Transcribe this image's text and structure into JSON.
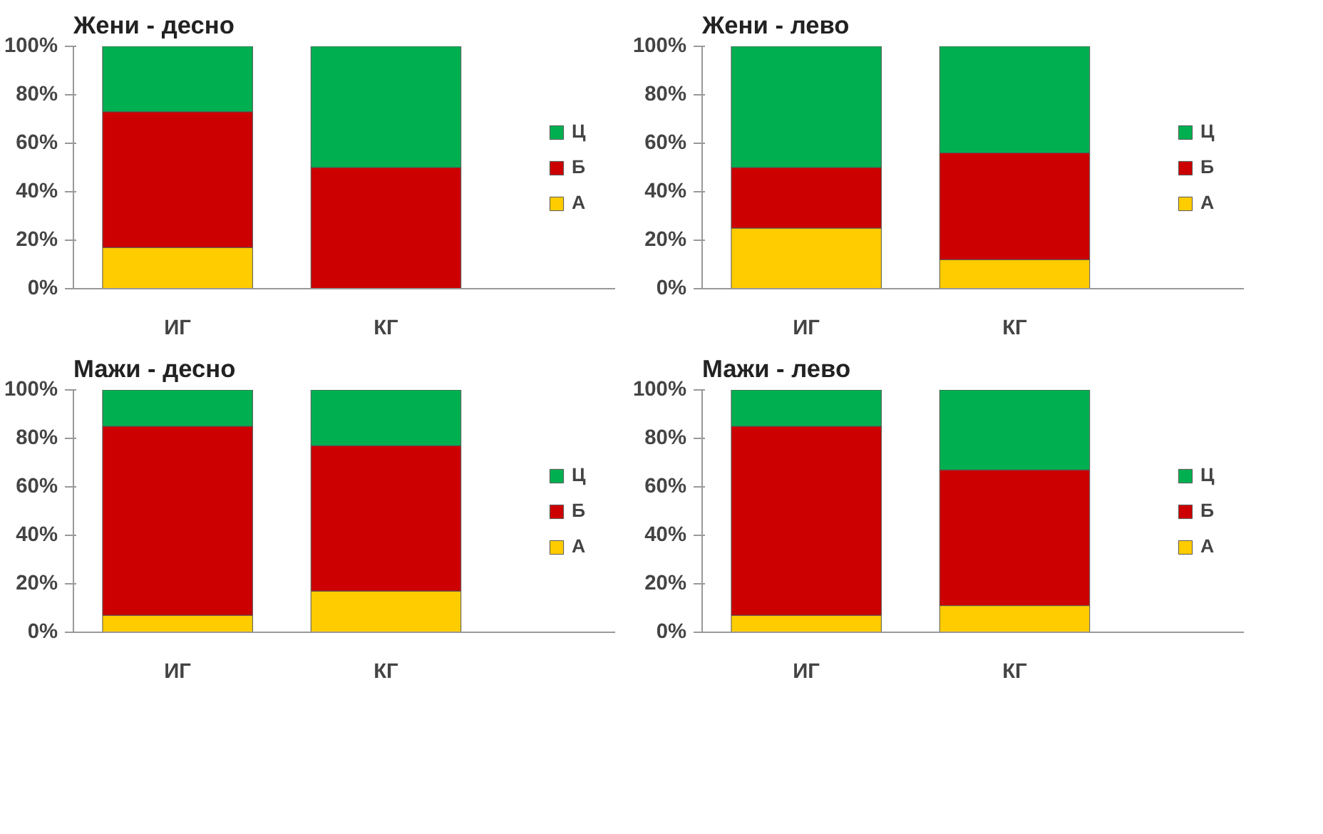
{
  "chart_data": [
    {
      "type": "bar",
      "title": "Жени - десно",
      "categories": [
        "ИГ",
        "КГ"
      ],
      "stacked": true,
      "legend": "right",
      "grid": false,
      "ylim": [
        0,
        1
      ],
      "yticks": [
        {
          "value": 0,
          "label": "0%"
        },
        {
          "value": 0.2,
          "label": "20%"
        },
        {
          "value": 0.4,
          "label": "40%"
        },
        {
          "value": 0.6,
          "label": "60%"
        },
        {
          "value": 0.8,
          "label": "80%"
        },
        {
          "value": 1,
          "label": "100%"
        }
      ],
      "series": [
        {
          "name": "А",
          "color": "#ffcc00",
          "values": [
            0.17,
            0
          ]
        },
        {
          "name": "Б",
          "color": "#cc0000",
          "values": [
            0.56,
            0.5
          ]
        },
        {
          "name": "Ц",
          "color": "#00b050",
          "values": [
            0.27,
            0.5
          ]
        }
      ]
    },
    {
      "type": "bar",
      "title": "Жени - лево",
      "categories": [
        "ИГ",
        "КГ"
      ],
      "stacked": true,
      "legend": "right",
      "grid": false,
      "ylim": [
        0,
        1
      ],
      "yticks": [
        {
          "value": 0,
          "label": "0%"
        },
        {
          "value": 0.2,
          "label": "20%"
        },
        {
          "value": 0.4,
          "label": "40%"
        },
        {
          "value": 0.6,
          "label": "60%"
        },
        {
          "value": 0.8,
          "label": "80%"
        },
        {
          "value": 1,
          "label": "100%"
        }
      ],
      "series": [
        {
          "name": "А",
          "color": "#ffcc00",
          "values": [
            0.25,
            0.12
          ]
        },
        {
          "name": "Б",
          "color": "#cc0000",
          "values": [
            0.25,
            0.44
          ]
        },
        {
          "name": "Ц",
          "color": "#00b050",
          "values": [
            0.5,
            0.44
          ]
        }
      ]
    },
    {
      "type": "bar",
      "title": "Мажи - десно",
      "categories": [
        "ИГ",
        "КГ"
      ],
      "stacked": true,
      "legend": "right",
      "grid": false,
      "ylim": [
        0,
        1
      ],
      "yticks": [
        {
          "value": 0,
          "label": "0%"
        },
        {
          "value": 0.2,
          "label": "20%"
        },
        {
          "value": 0.4,
          "label": "40%"
        },
        {
          "value": 0.6,
          "label": "60%"
        },
        {
          "value": 0.8,
          "label": "80%"
        },
        {
          "value": 1,
          "label": "100%"
        }
      ],
      "series": [
        {
          "name": "А",
          "color": "#ffcc00",
          "values": [
            0.07,
            0.17
          ]
        },
        {
          "name": "Б",
          "color": "#cc0000",
          "values": [
            0.78,
            0.6
          ]
        },
        {
          "name": "Ц",
          "color": "#00b050",
          "values": [
            0.15,
            0.23
          ]
        }
      ]
    },
    {
      "type": "bar",
      "title": "Мажи - лево",
      "categories": [
        "ИГ",
        "КГ"
      ],
      "stacked": true,
      "legend": "right",
      "grid": false,
      "ylim": [
        0,
        1
      ],
      "yticks": [
        {
          "value": 0,
          "label": "0%"
        },
        {
          "value": 0.2,
          "label": "20%"
        },
        {
          "value": 0.4,
          "label": "40%"
        },
        {
          "value": 0.6,
          "label": "60%"
        },
        {
          "value": 0.8,
          "label": "80%"
        },
        {
          "value": 1,
          "label": "100%"
        }
      ],
      "series": [
        {
          "name": "А",
          "color": "#ffcc00",
          "values": [
            0.07,
            0.11
          ]
        },
        {
          "name": "Б",
          "color": "#cc0000",
          "values": [
            0.78,
            0.56
          ]
        },
        {
          "name": "Ц",
          "color": "#00b050",
          "values": [
            0.15,
            0.33
          ]
        }
      ]
    }
  ]
}
